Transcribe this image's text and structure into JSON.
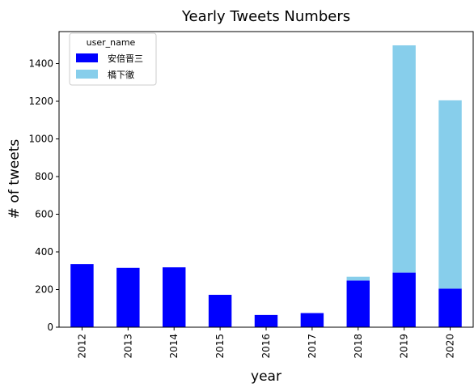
{
  "chart_data": {
    "type": "bar",
    "stacked": true,
    "title": "Yearly Tweets Numbers",
    "xlabel": "year",
    "ylabel": "# of tweets",
    "categories": [
      "2012",
      "2013",
      "2014",
      "2015",
      "2016",
      "2017",
      "2018",
      "2019",
      "2020"
    ],
    "series": [
      {
        "name": "安倍晋三",
        "color": "#0000ff",
        "values": [
          335,
          315,
          318,
          172,
          65,
          75,
          248,
          290,
          205
        ]
      },
      {
        "name": "橋下徹",
        "color": "#87ceeb",
        "values": [
          0,
          0,
          0,
          0,
          0,
          0,
          20,
          1207,
          1000
        ]
      }
    ],
    "ylim": [
      0,
      1570
    ],
    "yticks": [
      0,
      200,
      400,
      600,
      800,
      1000,
      1200,
      1400
    ],
    "legend": {
      "title": "user_name",
      "placement": "top-left"
    },
    "grid": false
  }
}
